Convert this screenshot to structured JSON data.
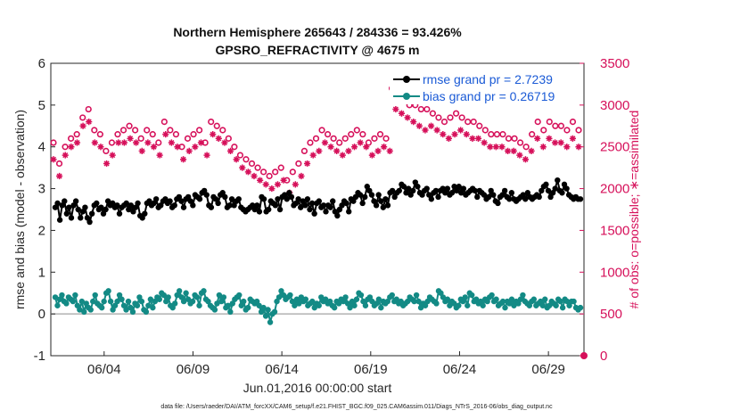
{
  "title_line1": "Northern Hemisphere 265643 / 284336 = 93.426%",
  "title_line2": "GPSRO_REFRACTIVITY @ 4675 m",
  "footer": "data file: /Users/raeder/DAI/ATM_forcXX/CAM6_setup/f.e21.FHIST_BGC.f09_025.CAM6assim.011/Diags_NTrS_2016-06/obs_diag_output.nc",
  "chart_data": {
    "type": "line",
    "xlabel": "Jun.01,2016 00:00:00 start",
    "ylabel": "rmse and bias (model - observation)",
    "ylabel_right": "# of obs: o=possible; ∗=assimilated",
    "xlim": [
      1,
      31
    ],
    "ylim": [
      -1,
      6
    ],
    "ylim_right": [
      0,
      3500
    ],
    "x_ticks": [
      4,
      9,
      14,
      19,
      24,
      29
    ],
    "x_tick_labels": [
      "06/04",
      "06/09",
      "06/14",
      "06/19",
      "06/24",
      "06/29"
    ],
    "y_ticks": [
      -1,
      0,
      1,
      2,
      3,
      4,
      5,
      6
    ],
    "y_ticks_right": [
      0,
      500,
      1000,
      1500,
      2000,
      2500,
      3000,
      3500
    ],
    "legend": [
      "rmse grand pr = 2.7239",
      "bias grand pr = 0.26719"
    ],
    "colors": {
      "rmse": "#000000",
      "bias": "#138a85",
      "obs": "#d6105a",
      "zero": "#b3b3b3"
    },
    "series": [
      {
        "name": "rmse",
        "values": [
          2.55,
          2.65,
          2.25,
          2.6,
          2.7,
          2.4,
          2.55,
          2.3,
          2.6,
          2.7,
          2.5,
          2.3,
          2.45,
          2.55,
          2.3,
          2.2,
          2.4,
          2.6,
          2.65,
          2.5,
          2.55,
          2.4,
          2.5,
          2.7,
          2.6,
          2.65,
          2.55,
          2.6,
          2.4,
          2.55,
          2.6,
          2.65,
          2.5,
          2.6,
          2.45,
          2.55,
          2.65,
          2.35,
          2.3,
          2.4,
          2.65,
          2.7,
          2.6,
          2.65,
          2.75,
          2.55,
          2.6,
          2.7,
          2.75,
          2.65,
          2.7,
          2.55,
          2.6,
          2.75,
          2.8,
          2.7,
          2.55,
          2.75,
          2.8,
          2.7,
          2.6,
          2.85,
          2.8,
          2.75,
          2.9,
          2.95,
          2.85,
          2.6,
          2.55,
          2.8,
          2.75,
          2.65,
          2.85,
          2.9,
          2.8,
          2.55,
          2.6,
          2.75,
          2.6,
          2.7,
          2.75,
          2.55,
          2.5,
          2.45,
          2.5,
          2.55,
          2.6,
          2.5,
          2.6,
          2.45,
          2.8,
          2.75,
          2.45,
          2.5,
          2.7,
          2.65,
          2.6,
          2.75,
          2.5,
          2.8,
          2.85,
          2.75,
          2.9,
          2.8,
          2.6,
          2.65,
          2.75,
          2.55,
          2.7,
          2.6,
          2.75,
          2.5,
          2.65,
          2.4,
          2.65,
          2.7,
          2.55,
          2.6,
          2.45,
          2.6,
          2.55,
          2.7,
          2.45,
          2.35,
          2.5,
          2.6,
          2.7,
          2.65,
          2.45,
          2.75,
          2.7,
          2.8,
          2.9,
          2.85,
          2.65,
          2.8,
          3.05,
          2.95,
          2.85,
          2.7,
          2.6,
          2.85,
          2.7,
          2.55,
          2.75,
          2.6,
          2.9,
          2.95,
          2.8,
          2.9,
          2.95,
          3.1,
          3.05,
          2.9,
          3.0,
          2.85,
          2.95,
          3.15,
          3.05,
          2.9,
          2.85,
          2.95,
          3.0,
          2.85,
          2.75,
          2.9,
          2.95,
          2.8,
          2.95,
          3.0,
          2.9,
          3.0,
          2.85,
          2.9,
          3.05,
          2.95,
          3.05,
          2.9,
          3.0,
          2.85,
          2.9,
          2.95,
          3.0,
          2.95,
          2.8,
          2.95,
          2.9,
          2.85,
          2.75,
          2.8,
          2.95,
          2.85,
          2.7,
          2.65,
          2.8,
          2.85,
          2.95,
          2.8,
          2.75,
          2.9,
          2.75,
          2.7,
          2.75,
          2.8,
          2.85,
          2.75,
          2.9,
          2.8,
          2.75,
          2.8,
          2.85,
          2.8,
          2.95,
          3.05,
          3.1,
          2.95,
          2.8,
          2.9,
          3.0,
          3.2,
          2.95,
          2.9,
          3.1,
          3.0,
          2.85,
          2.8,
          2.75,
          2.8,
          2.75,
          2.75
        ]
      },
      {
        "name": "bias",
        "values": [
          0.4,
          0.2,
          0.35,
          0.45,
          0.3,
          0.25,
          0.4,
          0.35,
          0.3,
          0.45,
          0.2,
          0.1,
          0.3,
          0.05,
          0.25,
          0.15,
          0.1,
          0.3,
          0.45,
          0.25,
          0.2,
          0.15,
          0.3,
          0.5,
          0.55,
          0.3,
          0.1,
          0.2,
          0.3,
          0.45,
          0.35,
          0.2,
          0.1,
          0.3,
          0.15,
          0.05,
          0.25,
          0.2,
          0.4,
          0.3,
          0.1,
          0.05,
          0.2,
          0.35,
          0.15,
          0.3,
          0.4,
          0.35,
          0.5,
          0.45,
          0.3,
          0.4,
          0.2,
          0.15,
          0.25,
          0.45,
          0.55,
          0.4,
          0.3,
          0.5,
          0.35,
          0.25,
          0.3,
          0.45,
          0.4,
          0.2,
          0.5,
          0.55,
          0.35,
          0.3,
          0.2,
          0.15,
          0.1,
          0.25,
          0.45,
          0.3,
          0.4,
          0.15,
          0.2,
          0.05,
          0.25,
          0.35,
          0.4,
          0.45,
          0.2,
          0.3,
          0.1,
          0.15,
          0.35,
          0.3,
          0.25,
          0.3,
          0.2,
          0.05,
          0.15,
          -0.05,
          0.1,
          -0.2,
          0.0,
          0.05,
          0.3,
          0.4,
          0.55,
          0.45,
          0.35,
          0.4,
          0.45,
          0.3,
          0.2,
          0.35,
          0.25,
          0.4,
          0.3,
          0.35,
          0.2,
          0.25,
          0.3,
          0.15,
          0.25,
          0.2,
          0.4,
          0.3,
          0.35,
          0.25,
          0.3,
          0.2,
          0.15,
          0.3,
          0.25,
          0.35,
          0.3,
          0.4,
          0.25,
          0.15,
          0.3,
          0.2,
          0.35,
          0.5,
          0.45,
          0.3,
          0.2,
          0.35,
          0.4,
          0.3,
          0.2,
          0.25,
          0.35,
          0.15,
          0.3,
          0.25,
          0.3,
          0.4,
          0.45,
          0.3,
          0.35,
          0.25,
          0.3,
          0.2,
          0.25,
          0.3,
          0.4,
          0.35,
          0.3,
          0.45,
          0.3,
          0.15,
          0.25,
          0.2,
          0.3,
          0.4,
          0.35,
          0.3,
          0.25,
          0.55,
          0.5,
          0.4,
          0.3,
          0.35,
          0.2,
          0.3,
          0.25,
          0.15,
          0.2,
          0.35,
          0.3,
          0.4,
          0.2,
          0.5,
          0.45,
          0.3,
          0.35,
          0.25,
          0.3,
          0.2,
          0.35,
          0.3,
          0.4,
          0.45,
          0.3,
          0.35,
          0.2,
          0.25,
          0.3,
          0.15,
          0.3,
          0.25,
          0.35,
          0.2,
          0.3,
          0.25,
          0.35,
          0.45,
          0.3,
          0.25,
          0.2,
          0.3,
          0.35,
          0.2,
          0.25,
          0.3,
          0.2,
          0.35,
          0.15,
          0.2,
          0.3,
          0.25,
          0.2,
          0.35,
          0.3,
          0.15,
          0.35,
          0.3,
          0.2,
          0.3,
          0.3,
          0.15,
          0.1,
          0.15
        ]
      },
      {
        "name": "possible",
        "values": [
          2550,
          2300,
          2500,
          2600,
          2650,
          2850,
          2950,
          2700,
          2650,
          2450,
          2550,
          2650,
          2700,
          2750,
          2700,
          2600,
          2700,
          2650,
          2550,
          2800,
          2700,
          2650,
          2500,
          2600,
          2650,
          2700,
          2550,
          2800,
          2750,
          2700,
          2600,
          2500,
          2400,
          2350,
          2300,
          2250,
          2200,
          2150,
          2200,
          2250,
          2100,
          2200,
          2300,
          2450,
          2550,
          2600,
          2700,
          2650,
          2600,
          2550,
          2600,
          2650,
          2700,
          2650,
          2550,
          2600,
          2650,
          2600,
          3200,
          3150,
          3050,
          3000,
          3000,
          2950,
          2950,
          2900,
          2850,
          2800,
          2850,
          2900,
          2850,
          2800,
          2800,
          2750,
          2700,
          2650,
          2650,
          2650,
          2600,
          2600,
          2550,
          2500,
          2650,
          2800,
          2700,
          2800,
          2750,
          2750,
          2700,
          2800,
          2700
        ]
      },
      {
        "name": "assimilated",
        "values": [
          2350,
          2150,
          2400,
          2500,
          2550,
          2750,
          2800,
          2550,
          2500,
          2300,
          2400,
          2550,
          2550,
          2600,
          2550,
          2450,
          2550,
          2500,
          2400,
          2650,
          2550,
          2500,
          2350,
          2450,
          2500,
          2550,
          2400,
          2650,
          2600,
          2550,
          2450,
          2350,
          2250,
          2200,
          2150,
          2100,
          2050,
          2000,
          2050,
          2100,
          1950,
          2050,
          2150,
          2300,
          2400,
          2450,
          2550,
          2500,
          2450,
          2400,
          2450,
          2500,
          2550,
          2500,
          2400,
          2450,
          2500,
          2450,
          2950,
          2900,
          2850,
          2800,
          2750,
          2700,
          2750,
          2700,
          2650,
          2600,
          2650,
          2700,
          2650,
          2600,
          2600,
          2550,
          2500,
          2500,
          2500,
          2450,
          2450,
          2400,
          2350,
          2450,
          2600,
          2500,
          2600,
          2550,
          2550,
          2500,
          2600,
          2500
        ]
      }
    ]
  }
}
